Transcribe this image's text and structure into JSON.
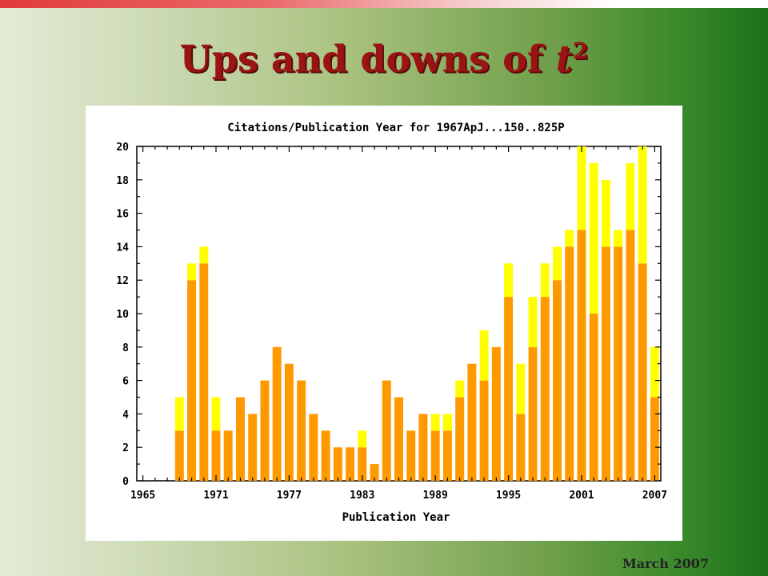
{
  "slide": {
    "title_main": "Ups and downs of ",
    "title_var": "t",
    "title_sup": "2",
    "footer": "March 2007"
  },
  "colors": {
    "title": "#9b1414",
    "bar_primary": "#ff9900",
    "bar_secondary": "#ffff00"
  },
  "chart_data": {
    "type": "bar",
    "stacked": true,
    "title": "Citations/Publication Year for 1967ApJ...150..825P",
    "xlabel": "Publication Year",
    "ylabel": "",
    "xlim": [
      1964.5,
      2007.5
    ],
    "ylim": [
      0,
      20
    ],
    "x_ticks": [
      1965,
      1971,
      1977,
      1983,
      1989,
      1995,
      2001,
      2007
    ],
    "y_ticks": [
      0,
      2,
      4,
      6,
      8,
      10,
      12,
      14,
      16,
      18,
      20
    ],
    "grid": false,
    "categories": [
      1968,
      1969,
      1970,
      1971,
      1972,
      1973,
      1974,
      1975,
      1976,
      1977,
      1978,
      1979,
      1980,
      1981,
      1982,
      1983,
      1984,
      1985,
      1986,
      1987,
      1988,
      1989,
      1990,
      1991,
      1992,
      1993,
      1994,
      1995,
      1996,
      1997,
      1998,
      1999,
      2000,
      2001,
      2002,
      2003,
      2004,
      2005,
      2006,
      2007
    ],
    "series": [
      {
        "color": "#ff9900",
        "values": [
          3,
          12,
          13,
          3,
          3,
          5,
          4,
          6,
          8,
          7,
          6,
          4,
          3,
          2,
          2,
          2,
          1,
          6,
          5,
          3,
          4,
          3,
          3,
          5,
          7,
          6,
          8,
          11,
          4,
          8,
          11,
          12,
          14,
          15,
          10,
          14,
          14,
          15,
          13,
          5
        ]
      },
      {
        "color": "#ffff00",
        "values": [
          2,
          1,
          1,
          2,
          0,
          0,
          0,
          0,
          0,
          0,
          0,
          0,
          0,
          0,
          0,
          1,
          0,
          0,
          0,
          0,
          0,
          1,
          1,
          1,
          0,
          3,
          0,
          2,
          3,
          3,
          2,
          2,
          1,
          5,
          9,
          4,
          1,
          4,
          7,
          3
        ]
      }
    ]
  }
}
